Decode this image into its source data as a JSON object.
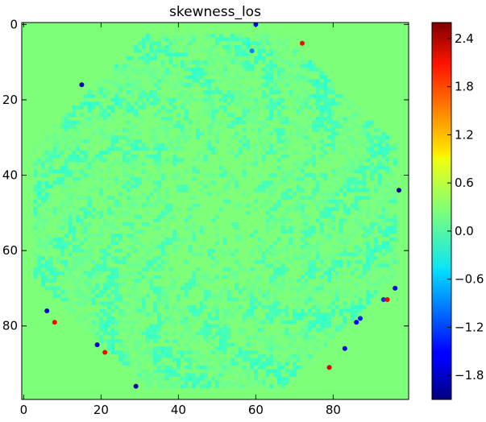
{
  "chart_data": {
    "type": "heatmap",
    "title": "skewness_los",
    "xlabel": "",
    "ylabel": "",
    "grid": false,
    "xlim": [
      -0.5,
      99.5
    ],
    "ylim": [
      99.5,
      -0.5
    ],
    "x_ticks": [
      0,
      20,
      40,
      60,
      80
    ],
    "x_tick_labels": [
      "0",
      "20",
      "40",
      "60",
      "80"
    ],
    "y_ticks": [
      0,
      20,
      40,
      60,
      80
    ],
    "y_tick_labels": [
      "0",
      "20",
      "40",
      "60",
      "80"
    ],
    "colormap": "jet",
    "colorbar": {
      "vmin": -2.1,
      "vmax": 2.6,
      "ticks": [
        2.4,
        1.8,
        1.2,
        0.6,
        0.0,
        -0.6,
        -1.2,
        -1.8
      ],
      "tick_labels": [
        "2.4",
        "1.8",
        "1.2",
        "0.6",
        "0.0",
        "−0.6",
        "−1.2",
        "−1.8"
      ]
    },
    "background_value": 0.0,
    "hot_spots": [
      {
        "x": 72,
        "y": 5,
        "value": 2.0
      },
      {
        "x": 15,
        "y": 16,
        "value": -1.8
      },
      {
        "x": 60,
        "y": 0,
        "value": -1.5
      },
      {
        "x": 97,
        "y": 44,
        "value": -2.0
      },
      {
        "x": 96,
        "y": 70,
        "value": -1.6
      },
      {
        "x": 93,
        "y": 73,
        "value": -1.3
      },
      {
        "x": 94,
        "y": 73,
        "value": 2.0
      },
      {
        "x": 86,
        "y": 79,
        "value": -1.5
      },
      {
        "x": 87,
        "y": 78,
        "value": -1.4
      },
      {
        "x": 83,
        "y": 86,
        "value": -1.6
      },
      {
        "x": 79,
        "y": 91,
        "value": 2.2
      },
      {
        "x": 6,
        "y": 76,
        "value": -1.8
      },
      {
        "x": 8,
        "y": 79,
        "value": 2.0
      },
      {
        "x": 19,
        "y": 85,
        "value": -1.8
      },
      {
        "x": 21,
        "y": 87,
        "value": 2.0
      },
      {
        "x": 29,
        "y": 96,
        "value": -2.0
      },
      {
        "x": 59,
        "y": 7,
        "value": -0.9
      }
    ]
  }
}
